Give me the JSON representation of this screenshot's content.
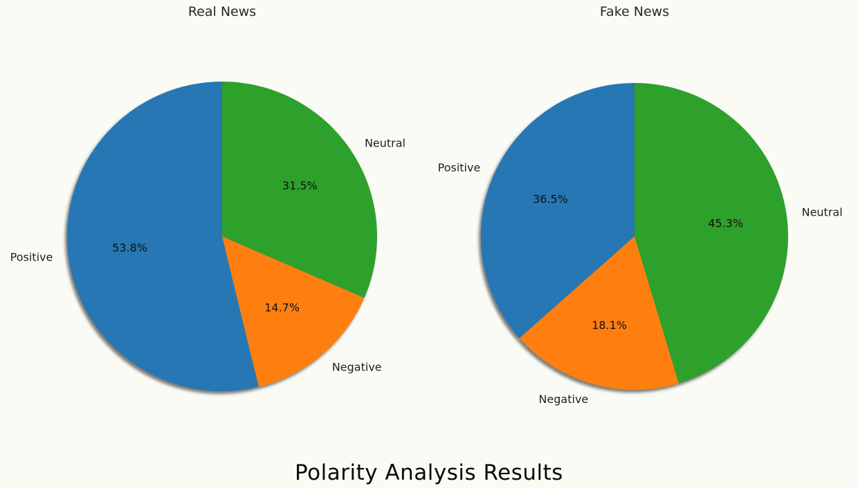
{
  "caption": "Polarity Analysis Results",
  "chart_data": [
    {
      "type": "pie",
      "title": "Real News",
      "categories": [
        "Positive",
        "Negative",
        "Neutral"
      ],
      "values": [
        53.8,
        14.7,
        31.5
      ],
      "labels": [
        "53.8%",
        "14.7%",
        "31.5%"
      ],
      "colors": [
        "#2677b4",
        "#fe7f10",
        "#2ea02c"
      ],
      "start_angle_deg": 90,
      "direction": "counterclockwise",
      "shadow": true
    },
    {
      "type": "pie",
      "title": "Fake News",
      "categories": [
        "Positive",
        "Negative",
        "Neutral"
      ],
      "values": [
        36.5,
        18.1,
        45.3
      ],
      "labels": [
        "36.5%",
        "18.1%",
        "45.3%"
      ],
      "colors": [
        "#2677b4",
        "#fe7f10",
        "#2ea02c"
      ],
      "start_angle_deg": 90,
      "direction": "counterclockwise",
      "shadow": true
    }
  ]
}
